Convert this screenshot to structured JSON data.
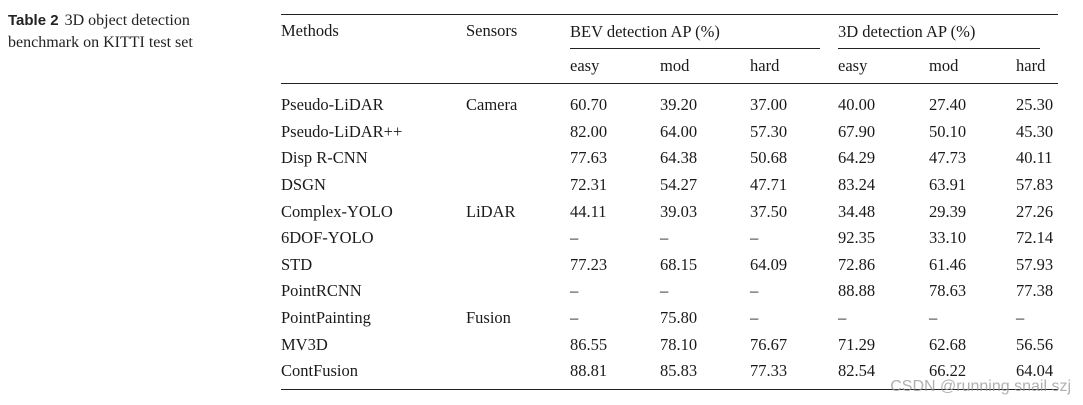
{
  "caption": {
    "label": "Table 2",
    "text": "3D object detection benchmark on KITTI test set"
  },
  "table": {
    "col_methods": "Methods",
    "col_sensors": "Sensors",
    "group_bev": "BEV detection AP (%)",
    "group_3d": "3D detection AP (%)",
    "sub": [
      "easy",
      "mod",
      "hard",
      "easy",
      "mod",
      "hard"
    ],
    "rows": [
      {
        "method": "Pseudo-LiDAR",
        "sensor": "Camera",
        "vals": [
          "60.70",
          "39.20",
          "37.00",
          "40.00",
          "27.40",
          "25.30"
        ]
      },
      {
        "method": "Pseudo-LiDAR++",
        "sensor": "",
        "vals": [
          "82.00",
          "64.00",
          "57.30",
          "67.90",
          "50.10",
          "45.30"
        ]
      },
      {
        "method": "Disp R-CNN",
        "sensor": "",
        "vals": [
          "77.63",
          "64.38",
          "50.68",
          "64.29",
          "47.73",
          "40.11"
        ]
      },
      {
        "method": "DSGN",
        "sensor": "",
        "vals": [
          "72.31",
          "54.27",
          "47.71",
          "83.24",
          "63.91",
          "57.83"
        ]
      },
      {
        "method": "Complex-YOLO",
        "sensor": "LiDAR",
        "vals": [
          "44.11",
          "39.03",
          "37.50",
          "34.48",
          "29.39",
          "27.26"
        ]
      },
      {
        "method": "6DOF-YOLO",
        "sensor": "",
        "vals": [
          "–",
          "–",
          "–",
          "92.35",
          "33.10",
          "72.14"
        ]
      },
      {
        "method": "STD",
        "sensor": "",
        "vals": [
          "77.23",
          "68.15",
          "64.09",
          "72.86",
          "61.46",
          "57.93"
        ]
      },
      {
        "method": "PointRCNN",
        "sensor": "",
        "vals": [
          "–",
          "–",
          "–",
          "88.88",
          "78.63",
          "77.38"
        ]
      },
      {
        "method": "PointPainting",
        "sensor": "Fusion",
        "vals": [
          "–",
          "75.80",
          "–",
          "–",
          "–",
          "–"
        ]
      },
      {
        "method": "MV3D",
        "sensor": "",
        "vals": [
          "86.55",
          "78.10",
          "76.67",
          "71.29",
          "62.68",
          "56.56"
        ]
      },
      {
        "method": "ContFusion",
        "sensor": "",
        "vals": [
          "88.81",
          "85.83",
          "77.33",
          "82.54",
          "66.22",
          "64.04"
        ]
      }
    ]
  },
  "watermark": "CSDN @running snail szj"
}
